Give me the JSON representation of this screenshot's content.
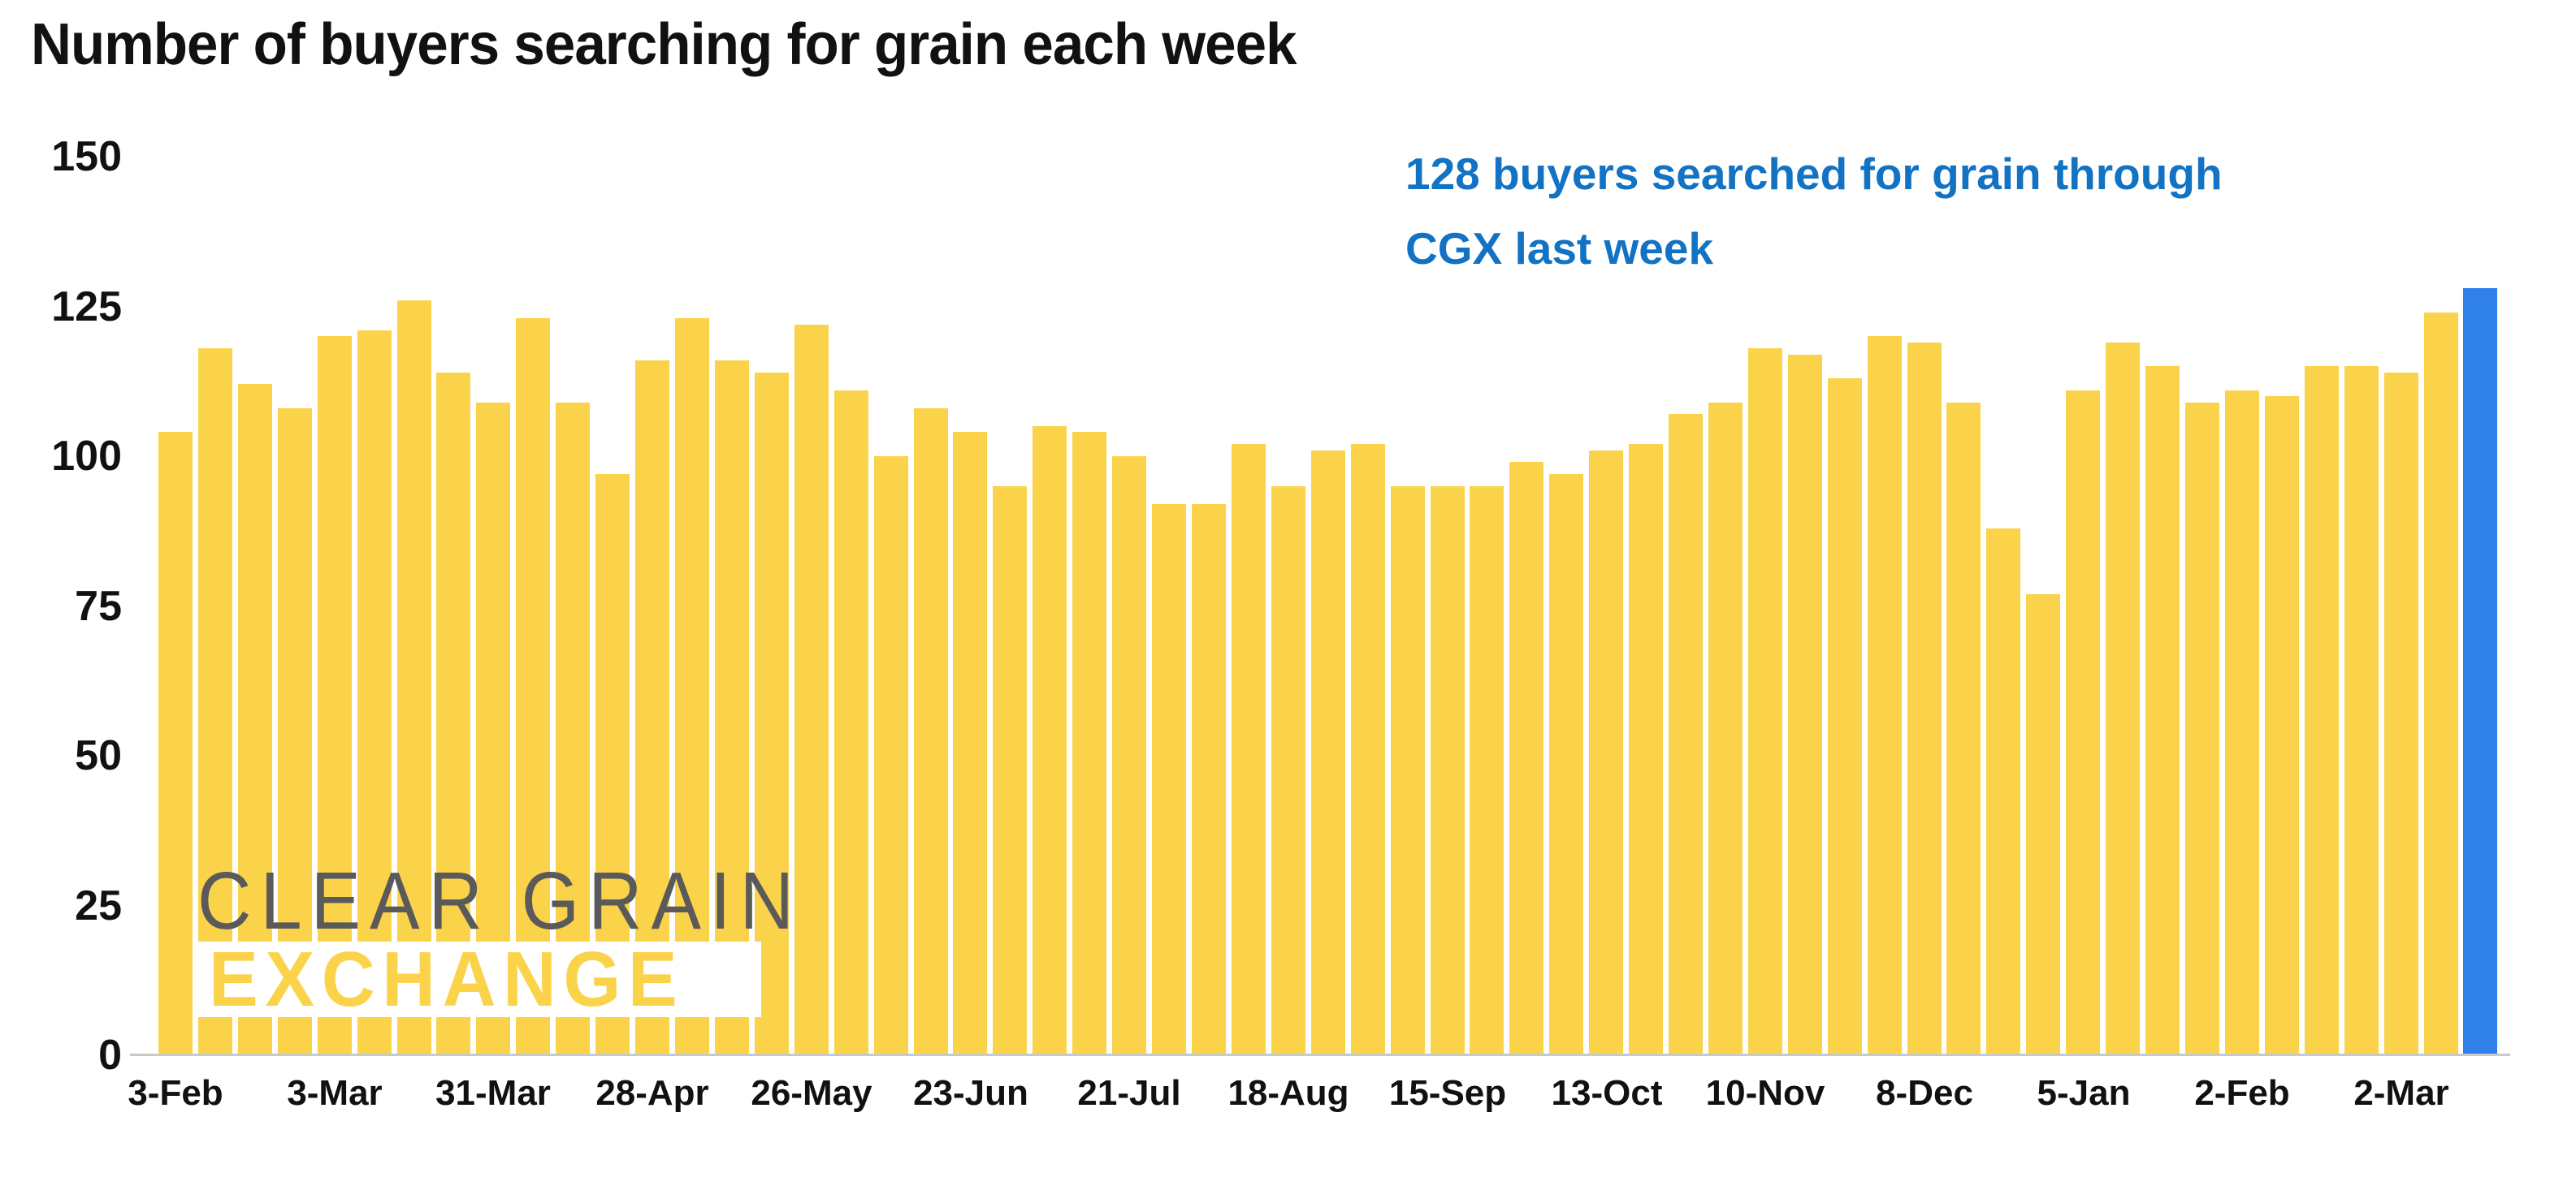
{
  "title": "Number of buyers searching for grain each week",
  "annotation": {
    "line1": "128 buyers searched for grain through",
    "line2": "CGX last week"
  },
  "logo": {
    "line1": "CLEAR GRAIN",
    "line2": "EXCHANGE"
  },
  "colors": {
    "bar_yellow": "#FBD34B",
    "bar_highlight_blue": "#2F80E8",
    "annotation_blue": "#1272C3",
    "logo_gray": "#5A5A5A",
    "axis_line_gray": "#C9C9C9",
    "text_black": "#111111"
  },
  "chart_data": {
    "type": "bar",
    "title": "Number of buyers searching for grain each week",
    "xlabel": "",
    "ylabel": "",
    "ylim": [
      0,
      150
    ],
    "yticks": [
      0,
      25,
      50,
      75,
      100,
      125,
      150
    ],
    "grid": false,
    "legend": "none",
    "x_tick_labels": [
      "3-Feb",
      "3-Mar",
      "31-Mar",
      "28-Apr",
      "26-May",
      "23-Jun",
      "21-Jul",
      "18-Aug",
      "15-Sep",
      "13-Oct",
      "10-Nov",
      "8-Dec",
      "5-Jan",
      "2-Feb",
      "2-Mar"
    ],
    "x_tick_interval": 4,
    "values": [
      104,
      118,
      112,
      108,
      120,
      121,
      126,
      114,
      109,
      123,
      109,
      97,
      116,
      123,
      116,
      114,
      122,
      111,
      100,
      108,
      104,
      95,
      105,
      104,
      100,
      92,
      92,
      102,
      95,
      101,
      102,
      95,
      95,
      95,
      99,
      97,
      101,
      102,
      107,
      109,
      118,
      117,
      113,
      120,
      119,
      109,
      88,
      77,
      111,
      119,
      115,
      109,
      111,
      110,
      115,
      115,
      114,
      124,
      128
    ],
    "highlight_last_bar": true,
    "highlighted_value": 128
  }
}
